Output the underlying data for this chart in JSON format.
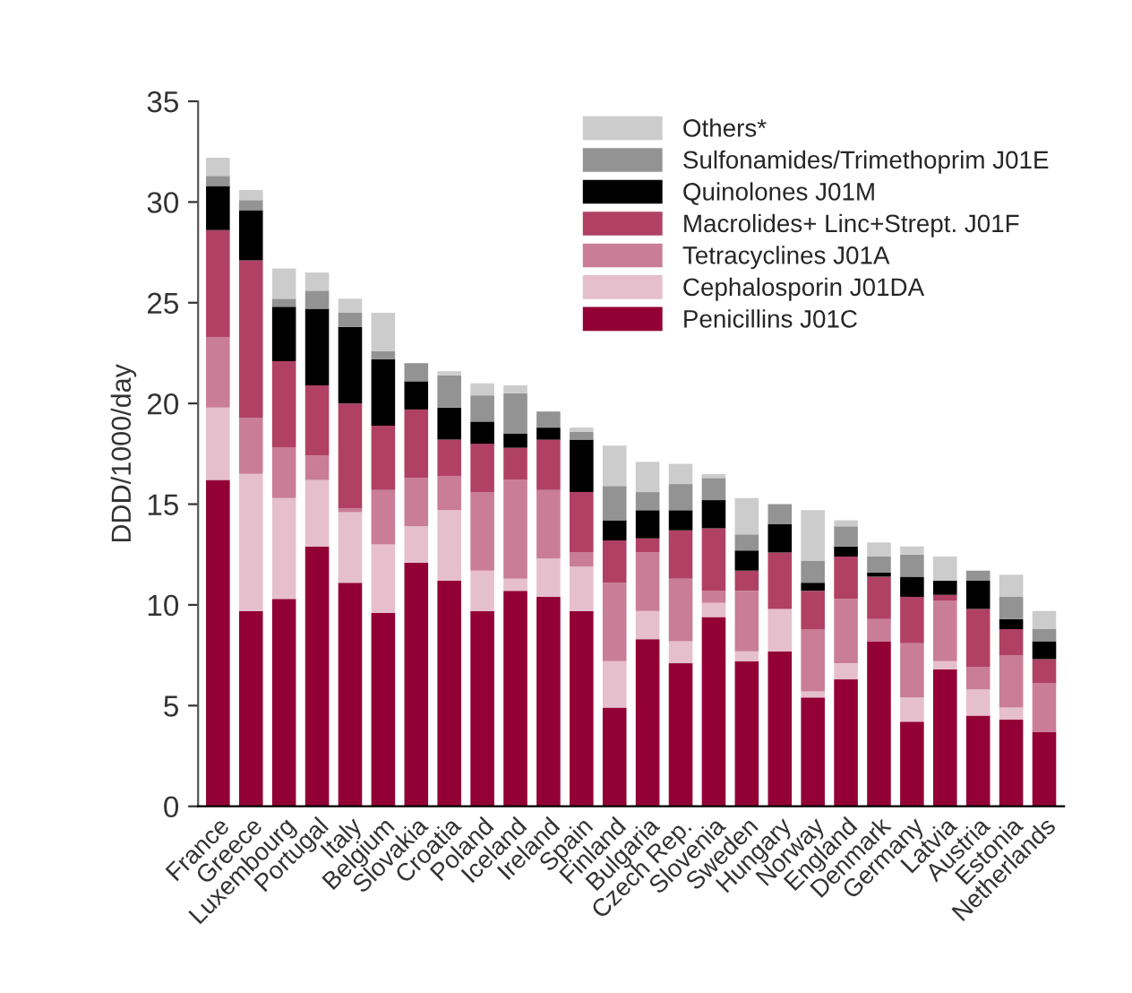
{
  "chart_data": {
    "type": "bar",
    "stacked": true,
    "ylabel": "DDD/1000/day",
    "categories": [
      "France",
      "Greece",
      "Luxembourg",
      "Portugal",
      "Italy",
      "Belgium",
      "Slovakia",
      "Croatia",
      "Poland",
      "Iceland",
      "Ireland",
      "Spain",
      "Finland",
      "Bulgaria",
      "Czech Rep.",
      "Slovenia",
      "Sweden",
      "Hungary",
      "Norway",
      "England",
      "Denmark",
      "Germany",
      "Latvia",
      "Austria",
      "Estonia",
      "Netherlands"
    ],
    "series": [
      {
        "name": "Penicillins J01C",
        "color": "#930035",
        "values": [
          16.2,
          9.7,
          10.3,
          12.9,
          11.1,
          9.6,
          12.1,
          11.2,
          9.7,
          10.7,
          10.4,
          9.7,
          4.9,
          8.3,
          7.1,
          9.4,
          7.2,
          7.7,
          5.4,
          6.3,
          8.2,
          4.2,
          6.8,
          4.5,
          4.3,
          3.7
        ]
      },
      {
        "name": "Cephalosporin J01DA",
        "color": "#e6bfcc",
        "values": [
          3.6,
          6.8,
          5.0,
          3.3,
          3.5,
          3.4,
          1.8,
          3.5,
          2.0,
          0.6,
          1.9,
          2.2,
          2.3,
          1.4,
          1.1,
          0.7,
          0.5,
          2.1,
          0.3,
          0.8,
          0,
          1.2,
          0.4,
          1.3,
          0.6,
          0
        ]
      },
      {
        "name": "Tetracyclines J01A",
        "color": "#c97d97",
        "values": [
          3.5,
          2.8,
          2.5,
          1.2,
          0.2,
          2.7,
          2.4,
          1.7,
          3.9,
          4.9,
          3.4,
          0.7,
          3.9,
          2.9,
          3.1,
          0.6,
          3.0,
          0,
          3.1,
          3.2,
          1.1,
          2.7,
          3.0,
          1.1,
          2.6,
          2.4
        ]
      },
      {
        "name": "Macrolides+ Linc+Strept. J01F",
        "color": "#b04165",
        "values": [
          5.3,
          7.8,
          4.3,
          3.5,
          5.2,
          3.2,
          3.4,
          1.8,
          2.4,
          1.6,
          2.5,
          3.0,
          2.1,
          0.7,
          2.4,
          3.1,
          1.0,
          2.8,
          1.9,
          2.1,
          2.1,
          2.3,
          0.3,
          2.9,
          1.3,
          1.2
        ]
      },
      {
        "name": "Quinolones J01M",
        "color": "#000000",
        "values": [
          2.2,
          2.5,
          2.7,
          3.8,
          3.8,
          3.3,
          1.4,
          1.6,
          1.1,
          0.7,
          0.6,
          2.6,
          1.0,
          1.4,
          1.0,
          1.4,
          1.0,
          1.4,
          0.4,
          0.5,
          0.2,
          1.0,
          0.7,
          1.4,
          0.5,
          0.9
        ]
      },
      {
        "name": "Sulfonamides/Trimethoprim J01E",
        "color": "#939393",
        "values": [
          0.5,
          0.5,
          0.4,
          0.9,
          0.7,
          0.4,
          0.9,
          1.6,
          1.3,
          2.0,
          0.8,
          0.4,
          1.7,
          0.9,
          1.3,
          1.1,
          0.8,
          1.0,
          1.1,
          1.0,
          0.8,
          1.1,
          0,
          0.5,
          1.1,
          0.6
        ]
      },
      {
        "name": "Others*",
        "color": "#cccccc",
        "values": [
          0.9,
          0.5,
          1.5,
          0.9,
          0.7,
          1.9,
          0,
          0.2,
          0.6,
          0.4,
          0,
          0.2,
          2.0,
          1.5,
          1.0,
          0.2,
          1.8,
          0,
          2.5,
          0.3,
          0.7,
          0.4,
          1.2,
          0,
          1.1,
          0.9
        ]
      }
    ],
    "ylim": [
      0,
      35
    ],
    "yticks": [
      0,
      5,
      10,
      15,
      20,
      25,
      30,
      35
    ],
    "grid": false,
    "legend": "top right"
  }
}
